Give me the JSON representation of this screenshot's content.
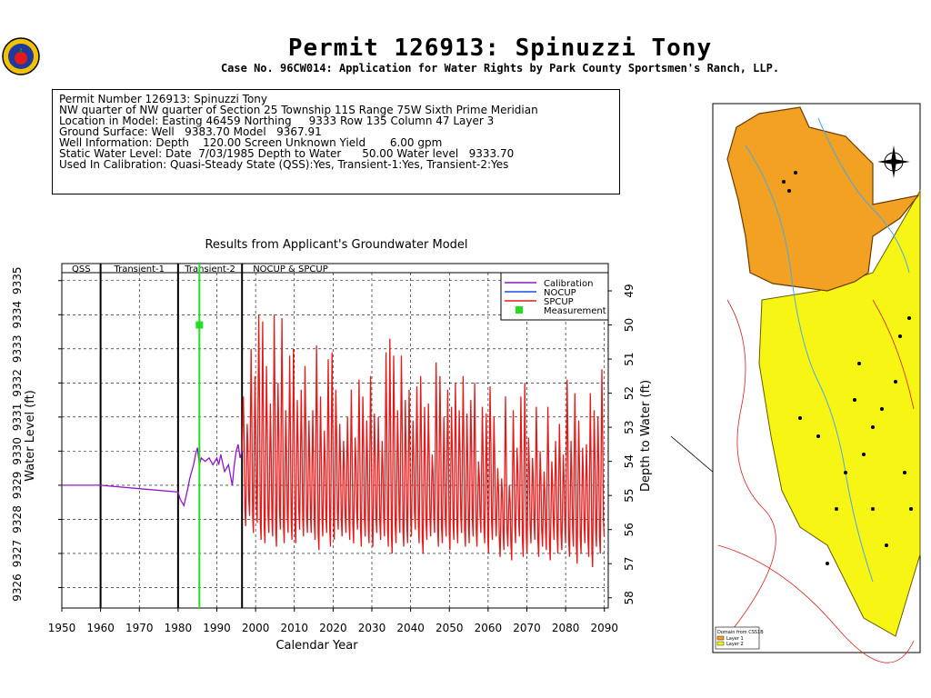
{
  "title": "Permit  126913:   Spinuzzi Tony",
  "subtitle": "Case No. 96CW014: Application for Water Rights by Park County Sportsmen's Ranch, LLP.",
  "info_lines": [
    "Permit Number 126913: Spinuzzi Tony",
    "",
    "NW quarter of NW quarter of Section 25 Township 11S Range 75W Sixth Prime Meridian",
    "Location in Model: Easting 46459 Northing     9333 Row 135 Column 47 Layer 3",
    "Ground Surface: Well   9383.70 Model   9367.91",
    "Well Information: Depth    120.00 Screen Unknown Yield       6.00 gpm",
    "Static Water Level: Date  7/03/1985 Depth to Water      50.00 Water level   9333.70",
    "Used In Calibration: Quasi-Steady State (QSS):Yes, Transient-1:Yes, Transient-2:Yes"
  ],
  "map_labels": {
    "domain_title": "Domain from CSS1B",
    "layer1": "Layer 1",
    "layer2": "Layer 2"
  },
  "chart_data": {
    "type": "line",
    "title": "Results from Applicant's Groundwater Model",
    "xlabel": "Calendar Year",
    "ylabel": "Water Level (ft)",
    "ylabel_right": "Depth to Water (ft)",
    "xlim": [
      1950,
      2091
    ],
    "ylim": [
      9325.4,
      9335.5
    ],
    "x_ticks": [
      1950,
      1960,
      1970,
      1980,
      1990,
      2000,
      2010,
      2020,
      2030,
      2040,
      2050,
      2060,
      2070,
      2080,
      2090
    ],
    "y_ticks": [
      9326,
      9327,
      9328,
      9329,
      9330,
      9331,
      9332,
      9333,
      9334,
      9335
    ],
    "right_ticks": [
      49,
      50,
      51,
      52,
      53,
      54,
      55,
      56,
      57,
      58
    ],
    "right_axis_reference": 9383.7,
    "grid": true,
    "periods": [
      {
        "label": "QSS",
        "start": 1950,
        "end": 1960
      },
      {
        "label": "Transient-1",
        "start": 1960,
        "end": 1980
      },
      {
        "label": "Transient-2",
        "start": 1980,
        "end": 1996.5
      },
      {
        "label": "NOCUP & SPCUP",
        "start": 1996.5,
        "end": 2091
      }
    ],
    "series": [
      {
        "name": "Calibration",
        "color": "#8e18c8",
        "values": [
          [
            1950,
            9329.0
          ],
          [
            1960,
            9329.0
          ],
          [
            1970,
            9328.9
          ],
          [
            1980,
            9328.8
          ],
          [
            1980.5,
            9328.6
          ],
          [
            1981.5,
            9328.4
          ],
          [
            1982.5,
            9328.9
          ],
          [
            1983,
            9329.2
          ],
          [
            1984,
            9329.6
          ],
          [
            1984.5,
            9329.9
          ],
          [
            1985,
            9330.1
          ],
          [
            1985.5,
            9329.6
          ],
          [
            1986,
            9329.8
          ],
          [
            1987,
            9329.7
          ],
          [
            1988,
            9329.8
          ],
          [
            1989,
            9329.6
          ],
          [
            1990,
            9329.8
          ],
          [
            1990.5,
            9329.6
          ],
          [
            1991,
            9329.9
          ],
          [
            1992,
            9329.4
          ],
          [
            1993,
            9329.6
          ],
          [
            1994,
            9329.0
          ],
          [
            1994.5,
            9329.6
          ],
          [
            1995,
            9330.0
          ],
          [
            1995.5,
            9330.2
          ],
          [
            1996,
            9329.8
          ],
          [
            1996.5,
            9330.0
          ]
        ]
      },
      {
        "name": "NOCUP",
        "color": "#1a4fe0",
        "values": []
      },
      {
        "name": "SPCUP",
        "color": "#e41a1a",
        "values": []
      },
      {
        "name": "Measurement",
        "color": "#22dd22",
        "values": [
          [
            1985.5,
            9333.7
          ]
        ]
      }
    ],
    "spcup_envelope": {
      "start": 1996.5,
      "end": 2090,
      "base": 9328.5,
      "peaks": [
        9331.6,
        9330.8,
        9333.0,
        9332.2,
        9334.0,
        9333.8,
        9332.5,
        9331.4,
        9334.0,
        9332.0,
        9333.9,
        9331.2,
        9332.8,
        9333.0,
        9331.5,
        9331.8,
        9332.5,
        9330.9,
        9331.2,
        9333.1,
        9331.6,
        9330.6,
        9332.7,
        9332.9,
        9331.8,
        9330.8,
        9330.3,
        9331.0,
        9331.8,
        9330.4,
        9332.1,
        9331.6,
        9330.9,
        9332.2,
        9331.1,
        9331.0,
        9330.3,
        9332.9,
        9333.3,
        9332.8,
        9331.2,
        9332.8,
        9331.5,
        9331.8,
        9330.9,
        9331.9,
        9332.2,
        9331.3,
        9331.4,
        9329.9,
        9332.6,
        9332.2,
        9331.0,
        9331.8,
        9331.3,
        9332.0,
        9331.2,
        9332.2,
        9331.1,
        9331.5,
        9332.0,
        9329.7,
        9331.3,
        9331.1,
        9331.9,
        9331.0,
        9329.5,
        9329.2,
        9331.6,
        9329.0,
        9331.2,
        9330.1,
        9331.6,
        9332.0,
        9330.4,
        9329.8,
        9331.3,
        9330.0,
        9329.4,
        9331.3,
        9329.7,
        9330.3,
        9330.8,
        9329.9,
        9332.1,
        9330.3,
        9331.7,
        9330.9,
        9330.1,
        9330.2,
        9331.7,
        9331.2,
        9331.0,
        9332.4
      ],
      "troughs": [
        9327.8,
        9328.1,
        9327.6,
        9327.9,
        9327.4,
        9327.3,
        9327.6,
        9327.5,
        9327.2,
        9327.7,
        9327.3,
        9327.6,
        9327.4,
        9327.3,
        9327.7,
        9327.5,
        9327.6,
        9327.6,
        9327.4,
        9327.1,
        9327.5,
        9327.6,
        9327.2,
        9327.4,
        9327.7,
        9327.5,
        9327.6,
        9327.4,
        9327.3,
        9327.7,
        9327.2,
        9327.5,
        9327.3,
        9327.2,
        9327.6,
        9327.4,
        9327.5,
        9327.2,
        9327.0,
        9327.3,
        9327.6,
        9327.2,
        9327.3,
        9327.5,
        9327.7,
        9327.3,
        9327.0,
        9327.4,
        9327.5,
        9327.6,
        9327.2,
        9327.3,
        9327.5,
        9327.1,
        9327.4,
        9327.3,
        9327.6,
        9327.2,
        9327.3,
        9327.5,
        9327.2,
        9327.6,
        9327.3,
        9327.0,
        9327.4,
        9327.5,
        9326.9,
        9327.1,
        9327.2,
        9326.8,
        9327.3,
        9327.5,
        9326.9,
        9327.0,
        9327.3,
        9327.4,
        9326.9,
        9327.2,
        9327.1,
        9326.8,
        9327.4,
        9327.0,
        9327.1,
        9327.3,
        9326.9,
        9327.2,
        9326.7,
        9327.0,
        9327.3,
        9326.9,
        9326.6,
        9327.2,
        9327.0,
        9327.5
      ]
    }
  }
}
